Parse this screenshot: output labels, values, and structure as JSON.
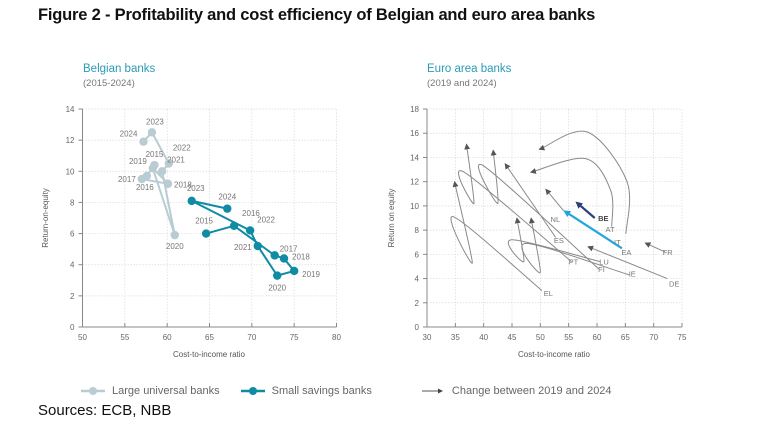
{
  "figure": {
    "title": "Figure 2 - Profitability and cost efficiency of Belgian and euro area banks",
    "sources": "Sources: ECB, NBB"
  },
  "legend": {
    "large_banks": "Large universal banks",
    "small_banks": "Small savings banks",
    "change": "Change between 2019 and 2024"
  },
  "colors": {
    "large_banks": "#b9ccd4",
    "small_banks": "#0f8ba3",
    "arrow_gray": "#8a8a8a",
    "belgium": "#2b3f7a",
    "euro_area": "#22a6de",
    "panel_title": "#2a9bb8"
  },
  "chart_data": [
    {
      "type": "line",
      "title": "Belgian banks",
      "subtitle": "(2015-2024)",
      "xlabel": "Cost-to-income ratio",
      "ylabel": "Return-on-equity",
      "xlim": [
        50,
        80
      ],
      "ylim": [
        0,
        14
      ],
      "xticks": [
        50,
        55,
        60,
        65,
        70,
        75,
        80
      ],
      "yticks": [
        0,
        2,
        4,
        6,
        8,
        10,
        12,
        14
      ],
      "grid": true,
      "series": [
        {
          "name": "Large universal banks",
          "points": [
            {
              "year": "2015",
              "x": 58.5,
              "y": 10.4
            },
            {
              "year": "2016",
              "x": 57.6,
              "y": 9.7
            },
            {
              "year": "2017",
              "x": 57.0,
              "y": 9.5
            },
            {
              "year": "2018",
              "x": 60.1,
              "y": 9.2
            },
            {
              "year": "2019",
              "x": 58.3,
              "y": 10.2
            },
            {
              "year": "2020",
              "x": 60.9,
              "y": 5.9
            },
            {
              "year": "2021",
              "x": 59.4,
              "y": 10.0
            },
            {
              "year": "2022",
              "x": 60.2,
              "y": 10.5
            },
            {
              "year": "2023",
              "x": 58.2,
              "y": 12.5
            },
            {
              "year": "2024",
              "x": 57.2,
              "y": 11.9
            }
          ]
        },
        {
          "name": "Small savings banks",
          "points": [
            {
              "year": "2015",
              "x": 64.6,
              "y": 6.0
            },
            {
              "year": "2016",
              "x": 67.9,
              "y": 6.5
            },
            {
              "year": "2017",
              "x": 72.7,
              "y": 4.6
            },
            {
              "year": "2018",
              "x": 73.8,
              "y": 4.4
            },
            {
              "year": "2019",
              "x": 75.0,
              "y": 3.6
            },
            {
              "year": "2020",
              "x": 73.0,
              "y": 3.3
            },
            {
              "year": "2021",
              "x": 70.7,
              "y": 5.2
            },
            {
              "year": "2022",
              "x": 69.8,
              "y": 6.2
            },
            {
              "year": "2023",
              "x": 62.9,
              "y": 8.1
            },
            {
              "year": "2024",
              "x": 67.1,
              "y": 7.6
            }
          ]
        }
      ]
    },
    {
      "type": "scatter",
      "title": "Euro area banks",
      "subtitle": "(2019 and 2024)",
      "xlabel": "Cost-to-income ratio",
      "ylabel": "Return on equity",
      "xlim": [
        30,
        75
      ],
      "ylim": [
        0,
        18
      ],
      "xticks": [
        30,
        35,
        40,
        45,
        50,
        55,
        60,
        65,
        70,
        75
      ],
      "yticks": [
        0,
        2,
        4,
        6,
        8,
        10,
        12,
        14,
        16,
        18
      ],
      "grid": true,
      "arrows": [
        {
          "country": "BE",
          "from": [
            59.6,
            9.0
          ],
          "to": [
            56.6,
            10.2
          ],
          "style": "belgium",
          "via": []
        },
        {
          "country": "EA",
          "from": [
            64.4,
            6.5
          ],
          "to": [
            54.5,
            9.5
          ],
          "style": "euro_area",
          "via": []
        },
        {
          "country": "NL",
          "from": [
            54.1,
            9.6
          ],
          "to": [
            51.1,
            11.3
          ],
          "style": "gray",
          "via": []
        },
        {
          "country": "AT",
          "from": [
            62.6,
            8.3
          ],
          "to": [
            48.5,
            12.8
          ],
          "style": "gray",
          "via": [
            [
              62.4,
              11.3
            ],
            [
              58.0,
              13.9
            ]
          ]
        },
        {
          "country": "IT",
          "from": [
            65.1,
            7.7
          ],
          "to": [
            50.0,
            14.7
          ],
          "style": "gray",
          "via": [
            [
              65.3,
              12.0
            ],
            [
              58.3,
              16.1
            ]
          ]
        },
        {
          "country": "FR",
          "from": [
            72.0,
            6.2
          ],
          "to": [
            68.7,
            6.9
          ],
          "style": "gray",
          "via": []
        },
        {
          "country": "DE",
          "from": [
            72.4,
            4.0
          ],
          "to": [
            58.6,
            6.6
          ],
          "style": "gray",
          "via": []
        },
        {
          "country": "ES",
          "from": [
            52.7,
            7.4
          ],
          "to": [
            43.9,
            13.4
          ],
          "style": "gray",
          "via": []
        },
        {
          "country": "PT",
          "from": [
            55.5,
            5.4
          ],
          "to": [
            37.0,
            15.0
          ],
          "style": "gray",
          "via": [
            [
              36.5,
              12.8
            ],
            [
              38.3,
              10.2
            ]
          ]
        },
        {
          "country": "FI",
          "from": [
            60.3,
            4.8
          ],
          "to": [
            41.7,
            14.5
          ],
          "style": "gray",
          "via": [
            [
              40.0,
              13.3
            ],
            [
              42.5,
              10.2
            ]
          ]
        },
        {
          "country": "LU",
          "from": [
            60.5,
            5.4
          ],
          "to": [
            45.9,
            8.9
          ],
          "style": "gray",
          "via": [
            [
              45.0,
              7.2
            ],
            [
              47.1,
              5.4
            ]
          ]
        },
        {
          "country": "IE",
          "from": [
            65.7,
            4.3
          ],
          "to": [
            48.4,
            8.9
          ],
          "style": "gray",
          "via": [
            [
              47.5,
              6.9
            ],
            [
              50.0,
              4.5
            ]
          ]
        },
        {
          "country": "EL",
          "from": [
            50.3,
            3.0
          ],
          "to": [
            34.9,
            11.9
          ],
          "style": "gray",
          "via": [
            [
              34.7,
              9.1
            ],
            [
              38.0,
              5.3
            ]
          ]
        }
      ],
      "labels": [
        {
          "text": "BE",
          "x": 60.2,
          "y": 9.0,
          "bold": true
        },
        {
          "text": "NL",
          "x": 51.8,
          "y": 8.9
        },
        {
          "text": "AT",
          "x": 61.5,
          "y": 8.1
        },
        {
          "text": "IT",
          "x": 63.0,
          "y": 7.0
        },
        {
          "text": "EA",
          "x": 64.3,
          "y": 6.2
        },
        {
          "text": "FR",
          "x": 71.6,
          "y": 6.2
        },
        {
          "text": "ES",
          "x": 52.4,
          "y": 7.2
        },
        {
          "text": "PT",
          "x": 55.0,
          "y": 5.4
        },
        {
          "text": "LU",
          "x": 60.4,
          "y": 5.4
        },
        {
          "text": "FI",
          "x": 60.2,
          "y": 4.8
        },
        {
          "text": "IE",
          "x": 65.6,
          "y": 4.4
        },
        {
          "text": "DE",
          "x": 72.7,
          "y": 3.6
        },
        {
          "text": "EL",
          "x": 50.6,
          "y": 2.8
        }
      ]
    }
  ]
}
